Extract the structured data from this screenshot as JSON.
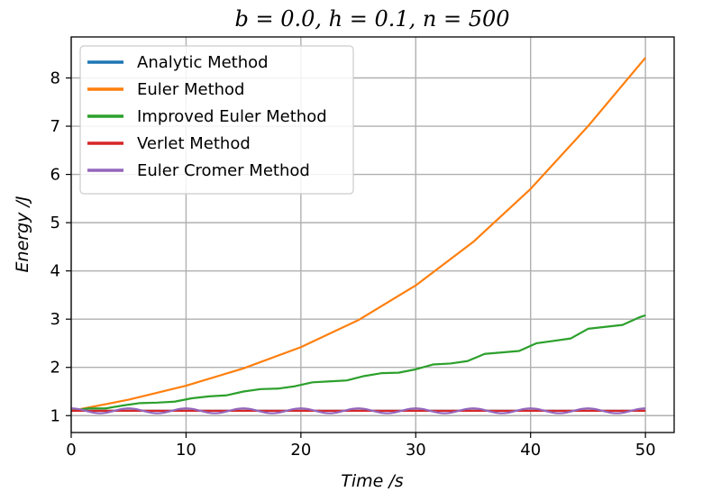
{
  "chart_data": {
    "type": "line",
    "title": "b = 0.0, h = 0.1, n = 500",
    "xlabel": "Time /s",
    "ylabel": "Energy /J",
    "xlim": [
      0,
      52.5
    ],
    "ylim": [
      0.65,
      8.85
    ],
    "xticks": [
      0,
      10,
      20,
      30,
      40,
      50
    ],
    "yticks": [
      1,
      2,
      3,
      4,
      5,
      6,
      7,
      8
    ],
    "grid": true,
    "legend_position": "top-left",
    "series": [
      {
        "name": "Analytic Method",
        "color": "#1f77b4",
        "x": [
          0,
          50
        ],
        "y": [
          1.1,
          1.1
        ]
      },
      {
        "name": "Euler Method",
        "color": "#ff7f0e",
        "x": [
          0,
          5,
          10,
          15,
          20,
          25,
          30,
          35,
          40,
          45,
          50
        ],
        "y": [
          1.1,
          1.33,
          1.62,
          1.98,
          2.42,
          2.98,
          3.7,
          4.6,
          5.7,
          7.0,
          8.42
        ]
      },
      {
        "name": "Improved Euler Method",
        "color": "#2ca02c",
        "x": [
          0,
          1.5,
          3,
          4.5,
          6,
          7.5,
          9,
          10.5,
          12,
          13.5,
          15,
          16.5,
          18,
          19.5,
          21,
          22.5,
          24,
          25.5,
          27,
          28.5,
          30,
          31.5,
          33,
          34.5,
          36,
          37.5,
          39,
          40.5,
          42,
          43.5,
          45,
          46.5,
          48,
          49.5,
          50
        ],
        "y": [
          1.1,
          1.15,
          1.15,
          1.21,
          1.26,
          1.27,
          1.29,
          1.36,
          1.4,
          1.42,
          1.5,
          1.55,
          1.56,
          1.61,
          1.69,
          1.71,
          1.73,
          1.82,
          1.88,
          1.89,
          1.96,
          2.06,
          2.08,
          2.13,
          2.28,
          2.31,
          2.34,
          2.5,
          2.55,
          2.6,
          2.8,
          2.84,
          2.88,
          3.04,
          3.08
        ]
      },
      {
        "name": "Verlet Method",
        "color": "#d62728",
        "x": [
          0,
          50
        ],
        "y": [
          1.1,
          1.1
        ]
      },
      {
        "name": "Euler Cromer Method",
        "color": "#9467bd",
        "x": [
          0,
          50
        ],
        "y": [
          1.1,
          1.1
        ],
        "oscillation_amplitude": 0.05,
        "oscillation_period": 5
      }
    ]
  }
}
